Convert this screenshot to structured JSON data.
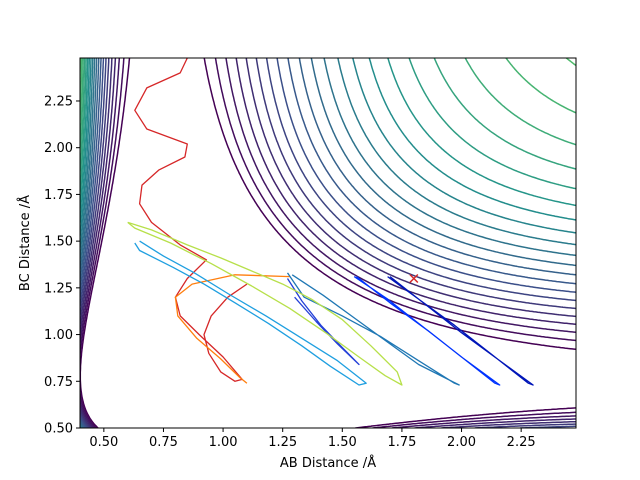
{
  "chart_data": {
    "type": "contour",
    "xlabel": "AB Distance /Å",
    "ylabel": "BC Distance /Å",
    "xlim": [
      0.4,
      2.48
    ],
    "ylim": [
      0.5,
      2.48
    ],
    "x_ticks": [
      0.5,
      0.75,
      1.0,
      1.25,
      1.5,
      1.75,
      2.0,
      2.25
    ],
    "x_tick_labels": [
      "0.50",
      "0.75",
      "1.00",
      "1.25",
      "1.50",
      "1.75",
      "2.00",
      "2.25"
    ],
    "y_ticks": [
      0.5,
      0.75,
      1.0,
      1.25,
      1.5,
      1.75,
      2.0,
      2.25
    ],
    "y_tick_labels": [
      "0.50",
      "0.75",
      "1.00",
      "1.25",
      "1.50",
      "1.75",
      "2.00",
      "2.25"
    ],
    "grid": false,
    "colormap": [
      "#440154",
      "#3b528b",
      "#21918c",
      "#5ec962",
      "#fde725"
    ],
    "contour_levels": 30,
    "marker": {
      "symbol": "x",
      "x": 1.8,
      "y": 1.3,
      "color": "#d62728"
    },
    "trajectories": [
      {
        "color": "#d62728",
        "points": [
          [
            0.85,
            2.48
          ],
          [
            0.82,
            2.4
          ],
          [
            0.68,
            2.32
          ],
          [
            0.63,
            2.2
          ],
          [
            0.68,
            2.1
          ],
          [
            0.85,
            2.02
          ],
          [
            0.84,
            1.95
          ],
          [
            0.73,
            1.88
          ],
          [
            0.66,
            1.8
          ],
          [
            0.65,
            1.7
          ],
          [
            0.7,
            1.6
          ],
          [
            0.82,
            1.48
          ],
          [
            0.93,
            1.4
          ],
          [
            0.85,
            1.3
          ],
          [
            0.8,
            1.2
          ],
          [
            0.82,
            1.1
          ],
          [
            0.9,
            1.0
          ],
          [
            1.0,
            0.88
          ],
          [
            1.08,
            0.76
          ],
          [
            1.05,
            0.75
          ],
          [
            0.99,
            0.8
          ],
          [
            0.94,
            0.9
          ],
          [
            0.92,
            1.0
          ],
          [
            0.95,
            1.1
          ],
          [
            1.02,
            1.2
          ],
          [
            1.1,
            1.27
          ]
        ]
      },
      {
        "color": "#ff7f0e",
        "points": [
          [
            1.28,
            1.31
          ],
          [
            1.05,
            1.32
          ],
          [
            0.87,
            1.27
          ],
          [
            0.8,
            1.2
          ],
          [
            0.81,
            1.1
          ],
          [
            0.89,
            0.98
          ],
          [
            0.99,
            0.87
          ],
          [
            1.07,
            0.77
          ],
          [
            1.1,
            0.74
          ]
        ]
      },
      {
        "color": "#1f9fe0",
        "points": [
          [
            0.63,
            1.49
          ],
          [
            0.65,
            1.45
          ],
          [
            0.79,
            1.36
          ],
          [
            0.92,
            1.27
          ],
          [
            1.05,
            1.17
          ],
          [
            1.19,
            1.06
          ],
          [
            1.33,
            0.94
          ],
          [
            1.45,
            0.83
          ],
          [
            1.57,
            0.73
          ],
          [
            1.6,
            0.74
          ],
          [
            1.48,
            0.86
          ],
          [
            1.33,
            0.98
          ],
          [
            1.18,
            1.1
          ],
          [
            1.02,
            1.22
          ],
          [
            0.88,
            1.33
          ],
          [
            0.75,
            1.42
          ],
          [
            0.65,
            1.5
          ]
        ]
      },
      {
        "color": "#1f77b4",
        "points": [
          [
            1.29,
            1.32
          ],
          [
            1.42,
            1.21
          ],
          [
            1.56,
            1.08
          ],
          [
            1.7,
            0.95
          ],
          [
            1.82,
            0.84
          ],
          [
            1.99,
            0.73
          ],
          [
            1.97,
            0.74
          ],
          [
            1.82,
            0.86
          ],
          [
            1.66,
            0.99
          ],
          [
            1.5,
            1.1
          ],
          [
            1.34,
            1.2
          ],
          [
            1.27,
            1.33
          ]
        ]
      },
      {
        "color": "#2541d8",
        "points": [
          [
            1.27,
            1.3
          ],
          [
            1.33,
            1.18
          ],
          [
            1.41,
            1.05
          ],
          [
            1.5,
            0.93
          ],
          [
            1.57,
            0.84
          ],
          [
            1.48,
            0.95
          ],
          [
            1.39,
            1.07
          ],
          [
            1.3,
            1.2
          ]
        ]
      },
      {
        "color": "#0033ff",
        "points": [
          [
            1.56,
            1.31
          ],
          [
            1.7,
            1.17
          ],
          [
            1.86,
            1.02
          ],
          [
            2.0,
            0.88
          ],
          [
            2.16,
            0.73
          ],
          [
            2.14,
            0.74
          ],
          [
            1.98,
            0.9
          ],
          [
            1.83,
            1.05
          ],
          [
            1.69,
            1.19
          ],
          [
            1.55,
            1.31
          ]
        ]
      },
      {
        "color": "#0015b8",
        "points": [
          [
            1.7,
            1.31
          ],
          [
            1.85,
            1.16
          ],
          [
            2.0,
            1.01
          ],
          [
            2.15,
            0.87
          ],
          [
            2.3,
            0.73
          ],
          [
            2.28,
            0.74
          ],
          [
            2.12,
            0.9
          ],
          [
            1.97,
            1.05
          ],
          [
            1.82,
            1.19
          ],
          [
            1.69,
            1.31
          ]
        ]
      },
      {
        "color": "#b7e04a",
        "points": [
          [
            0.6,
            1.6
          ],
          [
            0.7,
            1.56
          ],
          [
            0.85,
            1.48
          ],
          [
            0.99,
            1.41
          ],
          [
            1.12,
            1.34
          ],
          [
            1.25,
            1.27
          ],
          [
            1.37,
            1.19
          ],
          [
            1.5,
            1.08
          ],
          [
            1.62,
            0.94
          ],
          [
            1.73,
            0.8
          ],
          [
            1.75,
            0.73
          ],
          [
            1.68,
            0.78
          ],
          [
            1.57,
            0.88
          ],
          [
            1.43,
            1.01
          ],
          [
            1.28,
            1.14
          ],
          [
            1.12,
            1.26
          ],
          [
            0.95,
            1.38
          ],
          [
            0.78,
            1.49
          ],
          [
            0.63,
            1.57
          ],
          [
            0.6,
            1.6
          ]
        ]
      }
    ]
  }
}
